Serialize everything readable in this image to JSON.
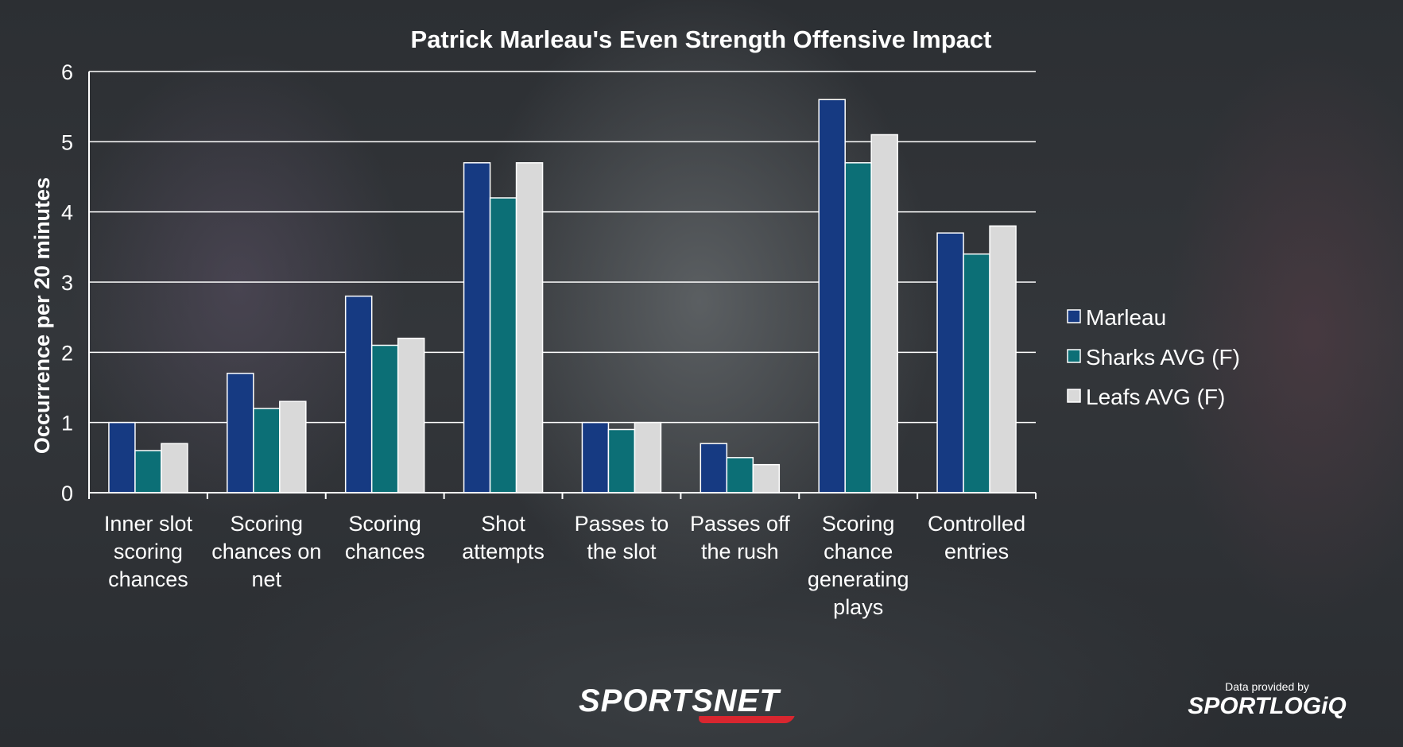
{
  "chart_data": {
    "type": "bar",
    "title": "Patrick Marleau's Even Strength Offensive Impact",
    "ylabel": "Occurrence per 20 minutes",
    "xlabel": "",
    "ylim": [
      0,
      6
    ],
    "yticks": [
      0,
      1,
      2,
      3,
      4,
      5,
      6
    ],
    "grid": true,
    "legend_position": "right",
    "categories": [
      [
        "Inner slot",
        "scoring",
        "chances"
      ],
      [
        "Scoring",
        "chances on",
        "net"
      ],
      [
        "Scoring",
        "chances"
      ],
      [
        "Shot",
        "attempts"
      ],
      [
        "Passes to",
        "the slot"
      ],
      [
        "Passes off",
        "the rush"
      ],
      [
        "Scoring",
        "chance",
        "generating",
        "plays"
      ],
      [
        "Controlled",
        "entries"
      ]
    ],
    "series": [
      {
        "name": "Marleau",
        "color": "#163a82",
        "values": [
          1.0,
          1.7,
          2.8,
          4.7,
          1.0,
          0.7,
          5.6,
          3.7
        ]
      },
      {
        "name": "Sharks AVG (F)",
        "color": "#0c6f76",
        "values": [
          0.6,
          1.2,
          2.1,
          4.2,
          0.9,
          0.5,
          4.7,
          3.4
        ]
      },
      {
        "name": "Leafs AVG (F)",
        "color": "#d9d9d9",
        "values": [
          0.7,
          1.3,
          2.2,
          4.7,
          1.0,
          0.4,
          5.1,
          3.8
        ]
      }
    ]
  },
  "branding": {
    "logo": "SPORTSNET",
    "credit_label": "Data provided by",
    "credit_logo": "SPORTLOGiQ"
  }
}
